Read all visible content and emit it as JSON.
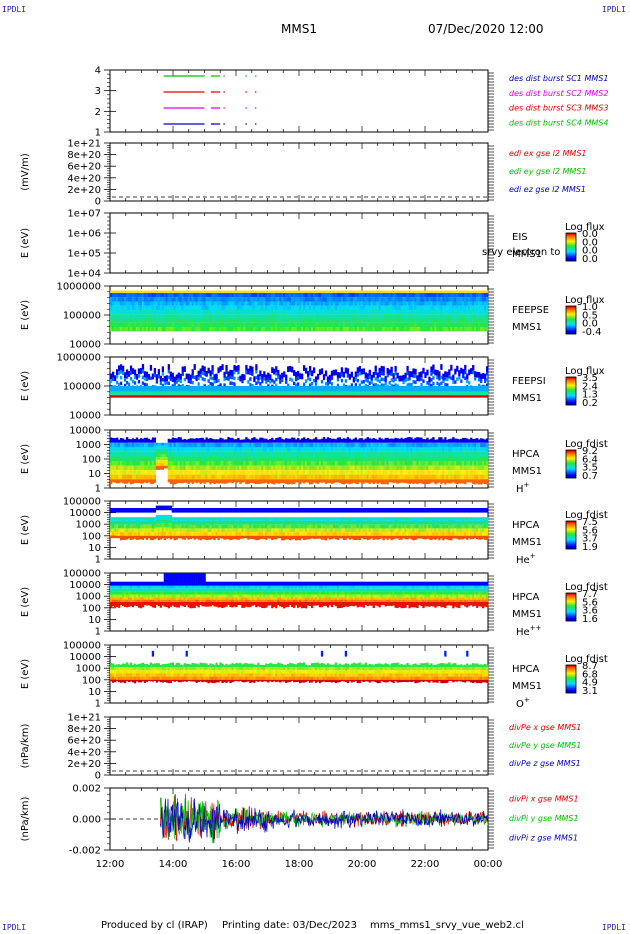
{
  "corners": {
    "tl": "IPDLI",
    "tr": "IPDLI",
    "bl": "IPDLI",
    "br": "IPDLI"
  },
  "header": {
    "spacecraft": "MMS1",
    "datetime": "07/Dec/2020 12:00"
  },
  "footer": {
    "producer": "Produced by cl (IRAP)",
    "printing_date": "Printing date: 03/Dec/2023",
    "file": "mms_mms1_srvy_vue_web2.cl"
  },
  "time_axis": {
    "ticks": [
      "12:00",
      "14:00",
      "16:00",
      "18:00",
      "20:00",
      "22:00",
      "00:00"
    ]
  },
  "colors": {
    "red": "#e00000",
    "green": "#00c000",
    "blue": "#0000c0",
    "magenta": "#e000e0",
    "orange": "#ff8000"
  },
  "chart_data": [
    {
      "id": "burst",
      "type": "line",
      "ylabel": "",
      "yticks": [
        "4",
        "3",
        "2",
        "1"
      ],
      "legend": [
        {
          "name": "des dist burst SC1 MMS1",
          "color": "#0000c0"
        },
        {
          "name": "des dist burst SC2 MMS2",
          "color": "#e000e0"
        },
        {
          "name": "des dist burst SC3 MMS3",
          "color": "#e00000"
        },
        {
          "name": "des dist burst SC4 MMS4",
          "color": "#00c000"
        }
      ],
      "series": [
        {
          "name": "SC4",
          "level": 4,
          "intervals": [
            [
              13.7,
              15.0
            ],
            [
              15.2,
              15.5
            ]
          ]
        },
        {
          "name": "SC3",
          "level": 3,
          "intervals": [
            [
              13.7,
              15.0
            ],
            [
              15.2,
              15.5
            ]
          ]
        },
        {
          "name": "SC2",
          "level": 2,
          "intervals": [
            [
              13.7,
              15.0
            ],
            [
              15.2,
              15.5
            ]
          ]
        },
        {
          "name": "SC1",
          "level": 1,
          "intervals": [
            [
              13.7,
              15.0
            ],
            [
              15.2,
              15.5
            ]
          ]
        }
      ]
    },
    {
      "id": "edi",
      "type": "line",
      "ylabel": "(mV/m)",
      "yticks": [
        "1e+21",
        "8e+20",
        "6e+20",
        "4e+20",
        "2e+20",
        "0"
      ],
      "legend": [
        {
          "name": "edi ex gse l2 MMS1",
          "color": "#e00000"
        },
        {
          "name": "edi ey gse l2 MMS1",
          "color": "#00c000"
        },
        {
          "name": "edi ez gse l2 MMS1",
          "color": "#0000c0"
        }
      ]
    },
    {
      "id": "eis",
      "type": "heatmap",
      "ylabel": "E (eV)",
      "yticks": [
        "1e+07",
        "1e+06",
        "1e+05",
        "1e+04"
      ],
      "labels": [
        "EIS",
        "MMS1"
      ],
      "overlay": "srvy electron to",
      "colorbar": {
        "title": "Log flux",
        "ticks": [
          "0.0",
          "0.0",
          "0.0",
          "0.0"
        ]
      }
    },
    {
      "id": "feepse",
      "type": "heatmap",
      "ylabel": "E (eV)",
      "yticks": [
        "1000000",
        "100000",
        "10000"
      ],
      "labels": [
        "FEEPSE",
        "MMS1"
      ],
      "colorbar": {
        "title": "Log flux",
        "ticks": [
          "1.0",
          "0.5",
          "0.0",
          "-0.4"
        ]
      }
    },
    {
      "id": "feepsi",
      "type": "heatmap",
      "ylabel": "E (eV)",
      "yticks": [
        "1000000",
        "100000",
        "10000"
      ],
      "labels": [
        "FEEPSI",
        "MMS1"
      ],
      "colorbar": {
        "title": "Log flux",
        "ticks": [
          "3.5",
          "2.4",
          "1.3",
          "0.2"
        ]
      }
    },
    {
      "id": "hpca_h",
      "type": "heatmap",
      "ylabel": "E (eV)",
      "yticks": [
        "10000",
        "1000",
        "100",
        "10",
        "1"
      ],
      "labels": [
        "HPCA",
        "MMS1"
      ],
      "species": "H",
      "charge": "+",
      "colorbar": {
        "title": "Log fdist",
        "ticks": [
          "9.2",
          "6.4",
          "3.5",
          "0.7"
        ]
      }
    },
    {
      "id": "hpca_he",
      "type": "heatmap",
      "ylabel": "E (eV)",
      "yticks": [
        "100000",
        "10000",
        "1000",
        "100",
        "10",
        "1"
      ],
      "labels": [
        "HPCA",
        "MMS1"
      ],
      "species": "He",
      "charge": "+",
      "colorbar": {
        "title": "Log fdist",
        "ticks": [
          "7.5",
          "5.6",
          "3.7",
          "1.9"
        ]
      }
    },
    {
      "id": "hpca_hepp",
      "type": "heatmap",
      "ylabel": "E (eV)",
      "yticks": [
        "100000",
        "10000",
        "1000",
        "100",
        "10",
        "1"
      ],
      "labels": [
        "HPCA",
        "MMS1"
      ],
      "species": "He",
      "charge": "++",
      "colorbar": {
        "title": "Log fdist",
        "ticks": [
          "7.7",
          "5.6",
          "3.6",
          "1.6"
        ]
      }
    },
    {
      "id": "hpca_o",
      "type": "heatmap",
      "ylabel": "E (eV)",
      "yticks": [
        "100000",
        "10000",
        "1000",
        "100",
        "10",
        "1"
      ],
      "labels": [
        "HPCA",
        "MMS1"
      ],
      "species": "O",
      "charge": "+",
      "colorbar": {
        "title": "Log fdist",
        "ticks": [
          "8.7",
          "6.8",
          "4.9",
          "3.1"
        ]
      }
    },
    {
      "id": "divpe",
      "type": "line",
      "ylabel": "(nPa/km)",
      "yticks": [
        "1e+21",
        "8e+20",
        "6e+20",
        "4e+20",
        "2e+20",
        "0"
      ],
      "legend": [
        {
          "name": "divPe x gse MMS1",
          "color": "#e00000"
        },
        {
          "name": "divPe y gse MMS1",
          "color": "#00c000"
        },
        {
          "name": "divPe z gse MMS1",
          "color": "#0000c0"
        }
      ]
    },
    {
      "id": "divpi",
      "type": "line",
      "ylabel": "(nPa/km)",
      "yticks": [
        "0.002",
        "0.000",
        "-0.002"
      ],
      "ylim": [
        -0.003,
        0.003
      ],
      "legend": [
        {
          "name": "divPi x gse MMS1",
          "color": "#e00000"
        },
        {
          "name": "divPi y gse MMS1",
          "color": "#00c000"
        },
        {
          "name": "divPi z gse MMS1",
          "color": "#0000c0"
        }
      ]
    }
  ]
}
